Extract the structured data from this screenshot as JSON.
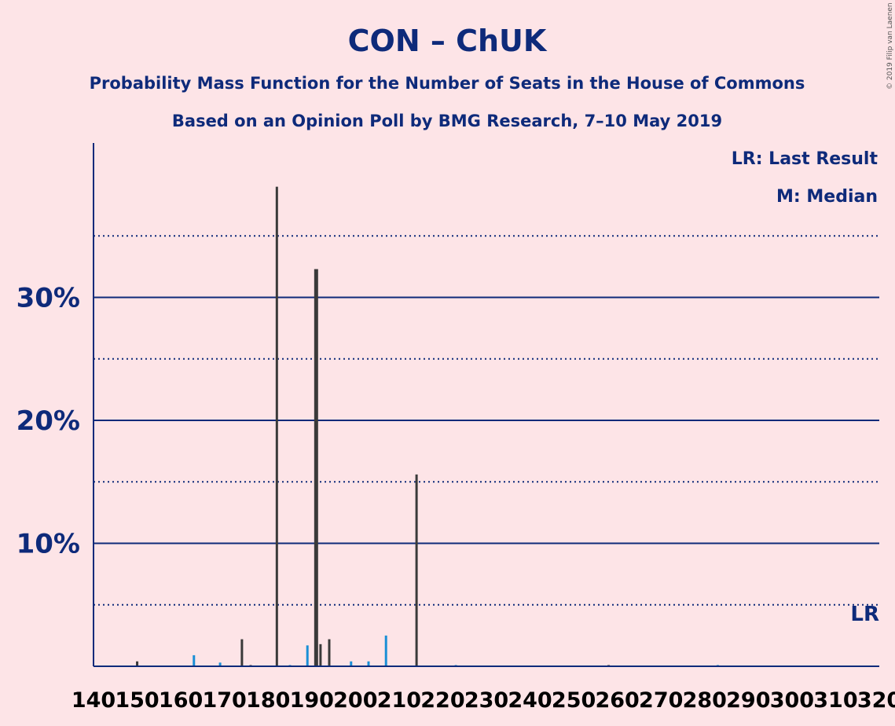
{
  "copyright": "© 2019 Filip van Laenen",
  "chart_data": {
    "type": "bar",
    "title": "CON – ChUK",
    "subtitle": "Probability Mass Function for the Number of Seats in the House of Commons",
    "subtitle2": "Based on an Opinion Poll by BMG Research, 7–10 May 2019",
    "legend": [
      "LR: Last Result",
      "M: Median"
    ],
    "xlim": [
      140,
      320
    ],
    "ylim": [
      0,
      40
    ],
    "y_major_ticks": [
      10,
      20,
      30
    ],
    "y_major_labels": [
      "10%",
      "20%",
      "30%"
    ],
    "y_minor_ticks": [
      5,
      15,
      25,
      35
    ],
    "x_ticks": [
      140,
      150,
      160,
      170,
      180,
      190,
      200,
      210,
      220,
      230,
      240,
      250,
      260,
      270,
      280,
      290,
      300,
      310,
      320
    ],
    "x_tick_labels": [
      "140",
      "150",
      "160",
      "170",
      "180",
      "190",
      "200",
      "210",
      "220",
      "230",
      "240",
      "250",
      "260",
      "270",
      "280",
      "290",
      "300",
      "310",
      "320"
    ],
    "median": 191,
    "last_result": 317,
    "last_result_label": "LR",
    "colors": {
      "odd_seat": "#1a8fd6",
      "even_seat": "#3a3a3a",
      "axis": "#0e2a7a"
    },
    "x": [
      150,
      163,
      169,
      174,
      176,
      182,
      185,
      189,
      191,
      192,
      194,
      199,
      203,
      207,
      214,
      223,
      258,
      283
    ],
    "values": [
      0.4,
      0.9,
      0.3,
      2.2,
      0.1,
      39.0,
      0.1,
      1.7,
      32.3,
      1.8,
      2.2,
      0.4,
      0.4,
      2.5,
      15.6,
      0.1,
      0.1,
      0.1
    ]
  }
}
